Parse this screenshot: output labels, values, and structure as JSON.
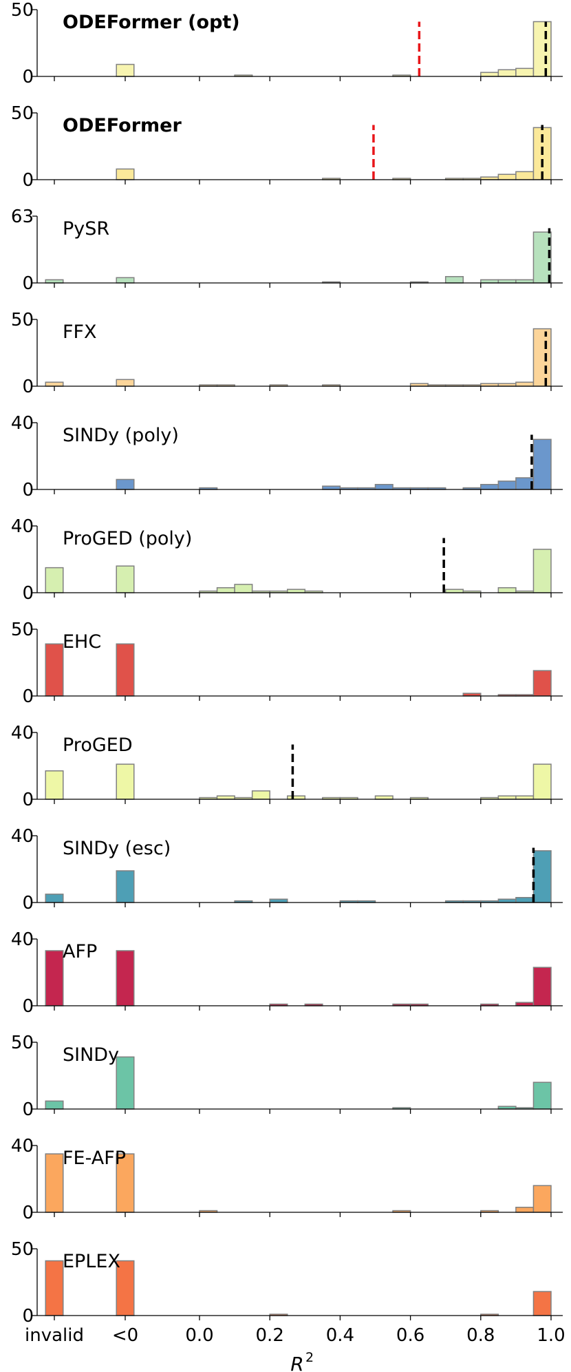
{
  "chart_data": {
    "type": "bar",
    "layout": "stacked histogram panels, shared x-axis",
    "xlabel": "R",
    "xlabel_superscript": "2",
    "x_tick_labels": [
      "invalid",
      "<0",
      "0.0",
      "0.2",
      "0.4",
      "0.6",
      "0.8",
      "1.0"
    ],
    "bins": {
      "special": [
        "invalid",
        "<0"
      ],
      "r2_bin_width": 0.05,
      "r2_range": [
        0.0,
        1.0
      ]
    },
    "panels": [
      {
        "label": "ODEFormer (opt)",
        "bold": true,
        "color": "#f7f4b0",
        "yticks": [
          "0",
          "50"
        ],
        "ymax": 50,
        "invalid": 0,
        "neg": 9,
        "r2_counts": [
          0,
          0,
          1,
          0,
          0,
          0,
          0,
          0,
          0,
          0,
          0,
          1,
          0,
          0,
          0,
          0,
          3,
          5,
          6,
          41
        ],
        "median_r2": 0.985,
        "mean_r2": 0.625
      },
      {
        "label": "ODEFormer",
        "bold": true,
        "color": "#fbe99a",
        "yticks": [
          "0",
          "50"
        ],
        "ymax": 50,
        "invalid": 0,
        "neg": 8,
        "r2_counts": [
          0,
          0,
          0,
          0,
          0,
          0,
          0,
          1,
          0,
          0,
          0,
          1,
          0,
          0,
          1,
          1,
          2,
          4,
          6,
          39
        ],
        "median_r2": 0.975,
        "mean_r2": 0.495
      },
      {
        "label": "PySR",
        "bold": false,
        "color": "#b7e1bd",
        "yticks": [
          "0",
          "63"
        ],
        "ymax": 63,
        "invalid": 3,
        "neg": 5,
        "r2_counts": [
          0,
          0,
          0,
          0,
          0,
          0,
          0,
          1,
          0,
          0,
          0,
          0,
          1,
          0,
          6,
          0,
          3,
          3,
          3,
          48
        ],
        "median_r2": 0.995,
        "mean_r2": null
      },
      {
        "label": "FFX",
        "bold": false,
        "color": "#fcd59a",
        "yticks": [
          "0",
          "50"
        ],
        "ymax": 50,
        "invalid": 3,
        "neg": 5,
        "r2_counts": [
          1,
          1,
          0,
          0,
          1,
          0,
          0,
          1,
          0,
          0,
          0,
          0,
          2,
          1,
          1,
          1,
          2,
          2,
          3,
          43
        ],
        "median_r2": 0.985,
        "mean_r2": null
      },
      {
        "label": "SINDy (poly)",
        "bold": false,
        "color": "#6b97cc",
        "yticks": [
          "0",
          "40"
        ],
        "ymax": 40,
        "invalid": 0,
        "neg": 6,
        "r2_counts": [
          1,
          0,
          0,
          0,
          0,
          0,
          0,
          2,
          1,
          1,
          3,
          1,
          1,
          1,
          0,
          1,
          3,
          5,
          7,
          30
        ],
        "median_r2": 0.945,
        "mean_r2": null
      },
      {
        "label": "ProGED (poly)",
        "bold": false,
        "color": "#d6efb0",
        "yticks": [
          "0",
          "40"
        ],
        "ymax": 40,
        "invalid": 15,
        "neg": 16,
        "r2_counts": [
          1,
          3,
          5,
          1,
          1,
          2,
          1,
          0,
          0,
          0,
          0,
          0,
          0,
          0,
          2,
          1,
          0,
          3,
          1,
          26
        ],
        "median_r2": 0.695,
        "mean_r2": null
      },
      {
        "label": "EHC",
        "bold": false,
        "color": "#e0524a",
        "yticks": [
          "0",
          "50"
        ],
        "ymax": 50,
        "invalid": 39,
        "neg": 39,
        "r2_counts": [
          0,
          0,
          0,
          0,
          0,
          0,
          0,
          0,
          0,
          0,
          0,
          0,
          0,
          0,
          0,
          2,
          0,
          1,
          1,
          19
        ],
        "median_r2": null,
        "mean_r2": null
      },
      {
        "label": "ProGED",
        "bold": false,
        "color": "#eef7a6",
        "yticks": [
          "0",
          "40"
        ],
        "ymax": 40,
        "invalid": 17,
        "neg": 21,
        "r2_counts": [
          1,
          2,
          1,
          5,
          0,
          2,
          0,
          1,
          1,
          0,
          2,
          0,
          1,
          0,
          0,
          0,
          1,
          2,
          2,
          21
        ],
        "median_r2": 0.265,
        "mean_r2": null
      },
      {
        "label": "SINDy (esc)",
        "bold": false,
        "color": "#4e9fb5",
        "yticks": [
          "0",
          "40"
        ],
        "ymax": 40,
        "invalid": 5,
        "neg": 19,
        "r2_counts": [
          0,
          0,
          1,
          0,
          2,
          0,
          0,
          0,
          1,
          1,
          0,
          0,
          0,
          0,
          1,
          1,
          1,
          2,
          3,
          31
        ],
        "median_r2": 0.95,
        "mean_r2": null
      },
      {
        "label": "AFP",
        "bold": false,
        "color": "#c4264f",
        "yticks": [
          "0",
          "40"
        ],
        "ymax": 40,
        "invalid": 33,
        "neg": 33,
        "r2_counts": [
          0,
          0,
          0,
          0,
          1,
          0,
          1,
          0,
          0,
          0,
          0,
          1,
          1,
          0,
          0,
          0,
          1,
          0,
          2,
          23
        ],
        "median_r2": null,
        "mean_r2": null
      },
      {
        "label": "SINDy",
        "bold": false,
        "color": "#6cc4a6",
        "yticks": [
          "0",
          "50"
        ],
        "ymax": 50,
        "invalid": 6,
        "neg": 39,
        "r2_counts": [
          0,
          0,
          0,
          0,
          0,
          0,
          0,
          0,
          0,
          0,
          0,
          1,
          0,
          0,
          0,
          0,
          0,
          2,
          1,
          20
        ],
        "median_r2": null,
        "mean_r2": null
      },
      {
        "label": "FE-AFP",
        "bold": false,
        "color": "#fba75e",
        "yticks": [
          "0",
          "40"
        ],
        "ymax": 40,
        "invalid": 35,
        "neg": 35,
        "r2_counts": [
          1,
          0,
          0,
          0,
          0,
          0,
          0,
          0,
          0,
          0,
          0,
          1,
          0,
          0,
          0,
          0,
          1,
          0,
          3,
          16
        ],
        "median_r2": null,
        "mean_r2": null
      },
      {
        "label": "EPLEX",
        "bold": false,
        "color": "#f47445",
        "yticks": [
          "0",
          "50"
        ],
        "ymax": 50,
        "invalid": 41,
        "neg": 41,
        "r2_counts": [
          0,
          0,
          0,
          0,
          1,
          0,
          0,
          0,
          0,
          0,
          0,
          0,
          0,
          0,
          0,
          0,
          1,
          0,
          0,
          18
        ],
        "median_r2": null,
        "mean_r2": null
      }
    ]
  }
}
